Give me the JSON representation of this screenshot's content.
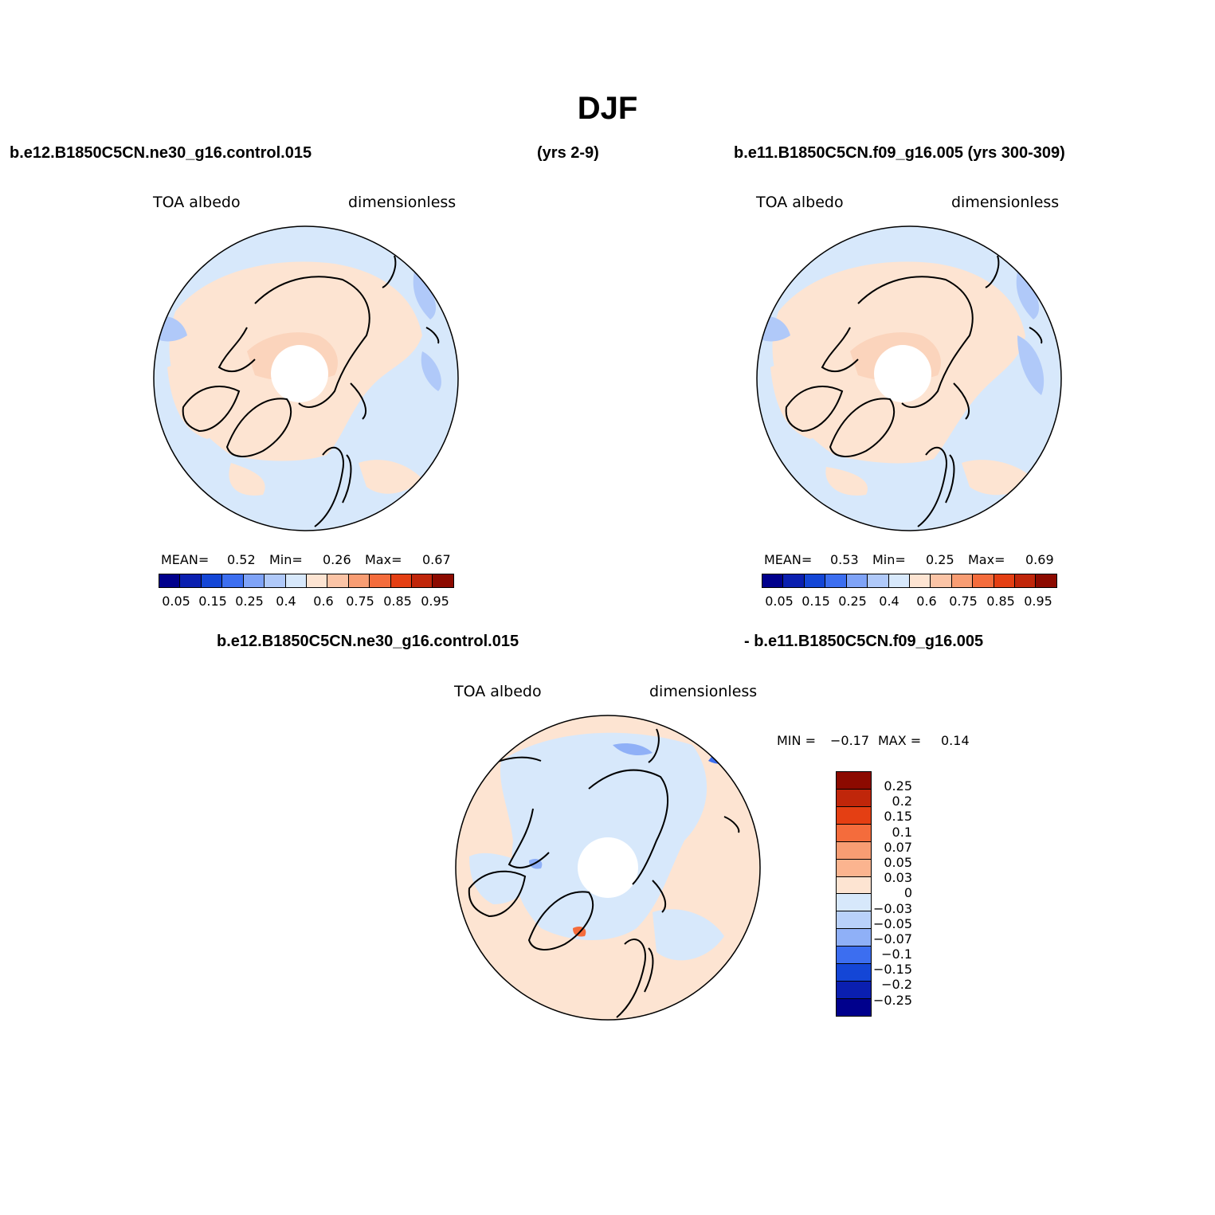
{
  "title": "DJF",
  "top_left": {
    "case": "b.e12.B1850C5CN.ne30_g16.control.015",
    "years": "(yrs 2-9)",
    "var_label": "TOA  albedo",
    "units": "dimensionless",
    "mean_label": "MEAN=",
    "mean_value": "0.52",
    "min_label": "Min=",
    "min_value": "0.26",
    "max_label": "Max=",
    "max_value": "0.67"
  },
  "top_right": {
    "case": "b.e11.B1850C5CN.f09_g16.005 (yrs 300-309)",
    "var_label": "TOA  albedo",
    "units": "dimensionless",
    "mean_label": "MEAN=",
    "mean_value": "0.53",
    "min_label": "Min=",
    "min_value": "0.25",
    "max_label": "Max=",
    "max_value": "0.69"
  },
  "bottom": {
    "case_a": "b.e12.B1850C5CN.ne30_g16.control.015",
    "case_b": "- b.e11.B1850C5CN.f09_g16.005",
    "var_label": "TOA  albedo",
    "units": "dimensionless",
    "min_label": "MIN =",
    "min_value": "−0.17",
    "max_label": "MAX =",
    "max_value": "0.14"
  },
  "abs_colorbar": {
    "colors": [
      "#00008c",
      "#0a1fb0",
      "#1446d6",
      "#3c6ef0",
      "#7fa3f7",
      "#b0c9f9",
      "#d7e8fb",
      "#fde4d2",
      "#fbc4a6",
      "#f89d73",
      "#f46c3c",
      "#e43f13",
      "#c0260a",
      "#8c0a00"
    ],
    "tick_labels": [
      "0.05",
      "0.15",
      "0.25",
      "0.4",
      "0.6",
      "0.75",
      "0.85",
      "0.95"
    ]
  },
  "diff_colorbar": {
    "colors_top_to_bottom": [
      "#8c0a00",
      "#c0260a",
      "#e43f13",
      "#f46c3c",
      "#f89d73",
      "#fbb48f",
      "#fde4d2",
      "#d7e8fb",
      "#b9d1fa",
      "#8fb0f7",
      "#3c6ef0",
      "#1446d6",
      "#0a1fb0",
      "#00008c"
    ],
    "tick_labels": [
      "0.25",
      "0.2",
      "0.15",
      "0.1",
      "0.07",
      "0.05",
      "0.03",
      "0",
      "−0.03",
      "−0.05",
      "−0.07",
      "−0.1",
      "−0.15",
      "−0.2",
      "−0.25"
    ]
  }
}
